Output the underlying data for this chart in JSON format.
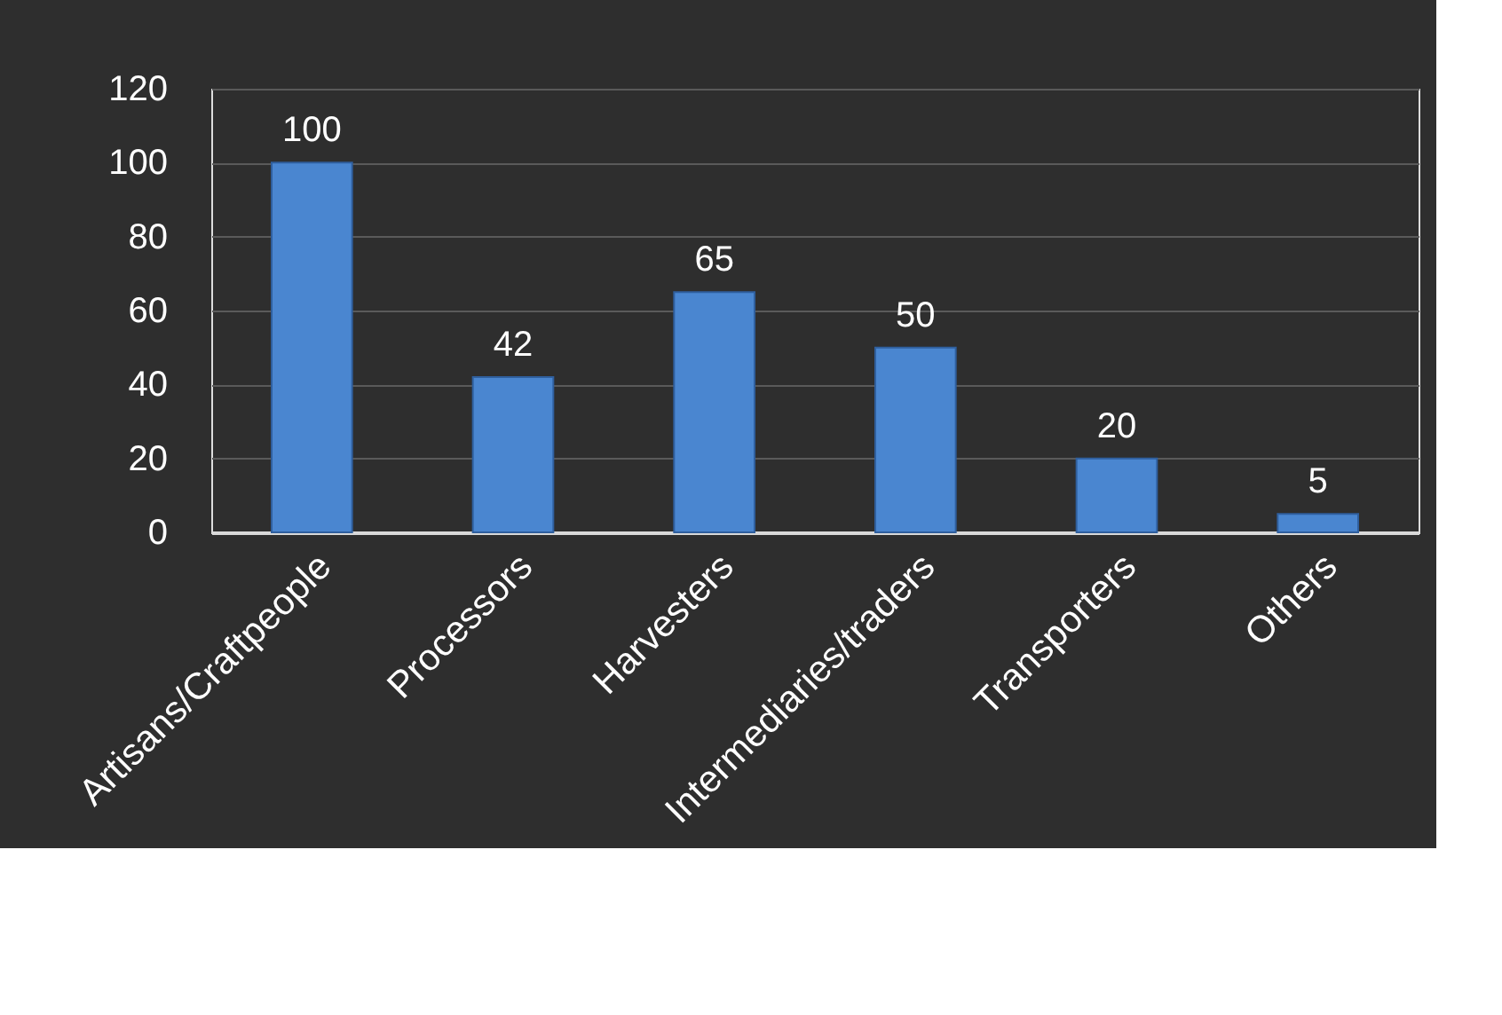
{
  "chart_data": {
    "type": "bar",
    "categories": [
      "Artisans/Craftpeople",
      "Processors",
      "Harvesters",
      "Intermediaries/traders",
      "Transporters",
      "Others"
    ],
    "values": [
      100,
      42,
      65,
      50,
      20,
      5
    ],
    "color": "#4a86d0",
    "ylim": [
      0,
      120
    ],
    "yticks": [
      0,
      20,
      40,
      60,
      80,
      100,
      120
    ],
    "grid": "y",
    "data_labels": true
  }
}
